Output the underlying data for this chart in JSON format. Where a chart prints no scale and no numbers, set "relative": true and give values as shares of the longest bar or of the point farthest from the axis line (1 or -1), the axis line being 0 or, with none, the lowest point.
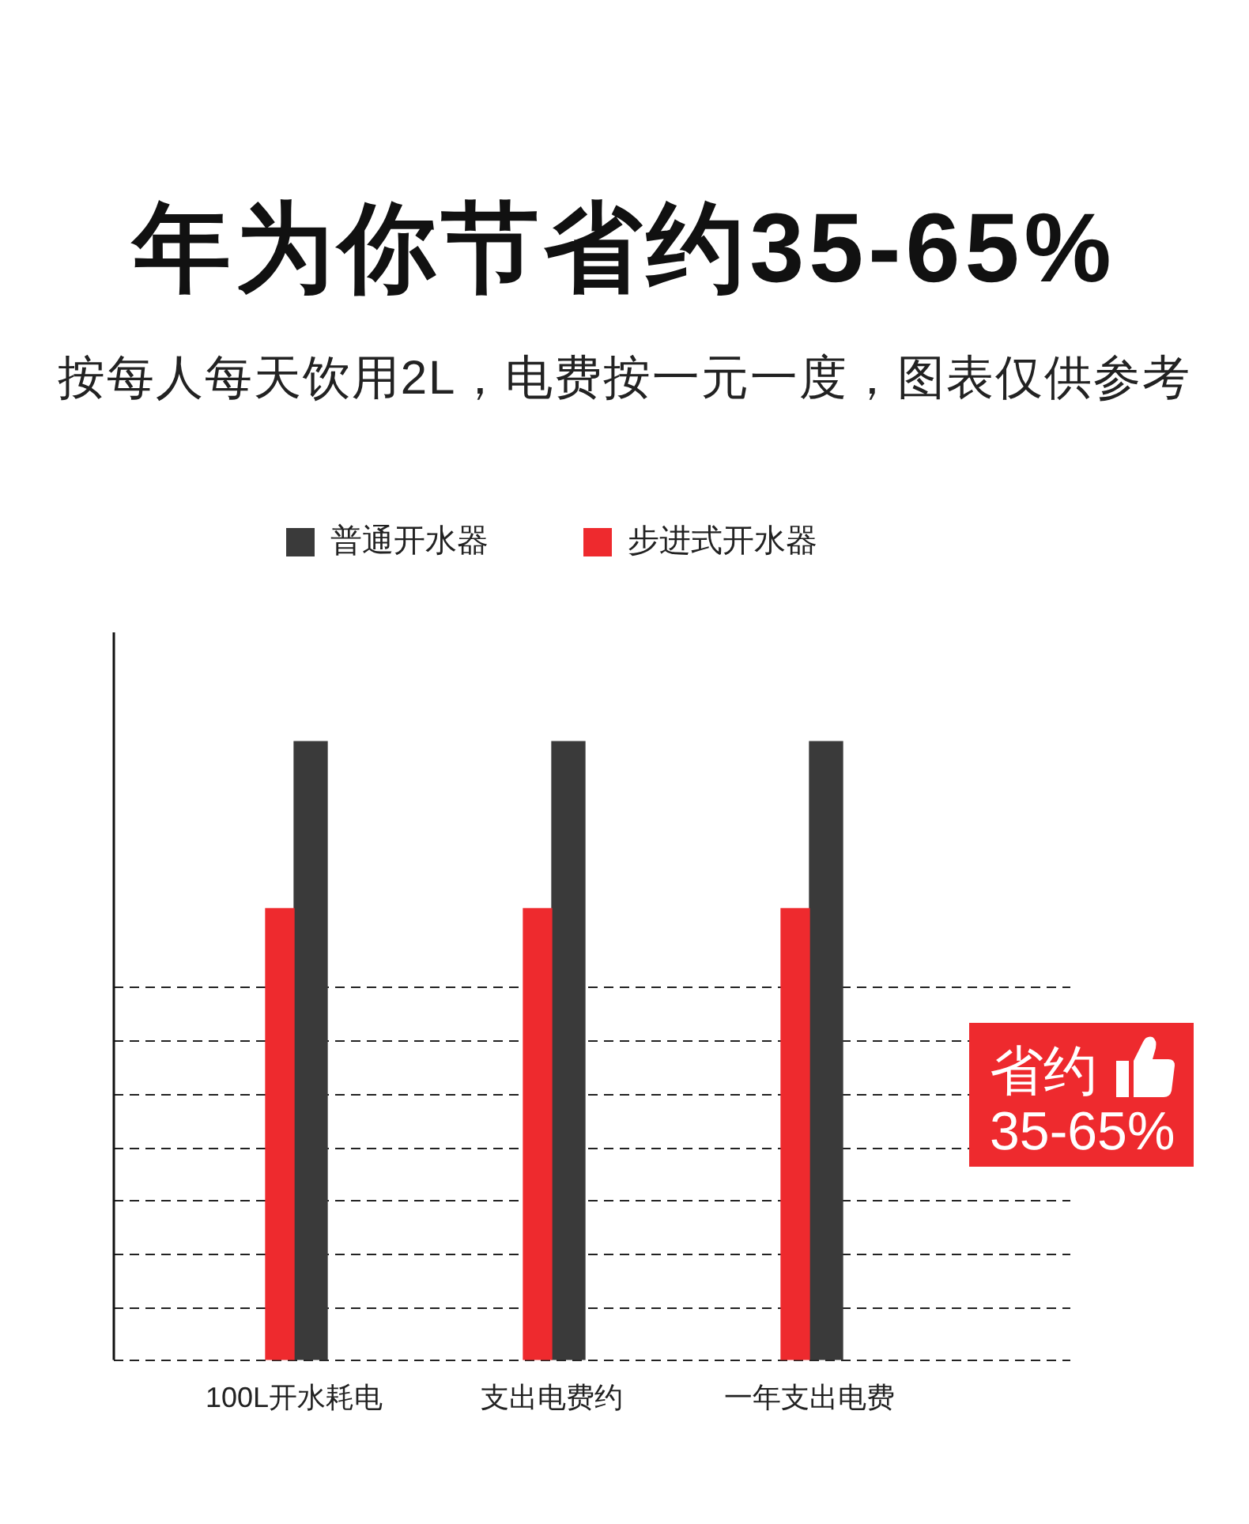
{
  "chart_data": {
    "type": "bar",
    "title": "年为你节省约35-65%",
    "subtitle": "按每人每天饮用2L，电费按一元一度，图表仅供参考",
    "categories": [
      "100L开水耗电",
      "支出电费约",
      "一年支出电费"
    ],
    "series": [
      {
        "name": "普通开水器",
        "color": "#3a3a3a",
        "values": [
          1,
          1,
          1
        ]
      },
      {
        "name": "步进式开水器",
        "color": "#ee2a2e",
        "values": [
          0.73,
          0.73,
          0.73
        ]
      }
    ],
    "relative": true,
    "grid": "y",
    "legend": "top",
    "annotations": [
      "省约",
      "35-65%"
    ]
  }
}
